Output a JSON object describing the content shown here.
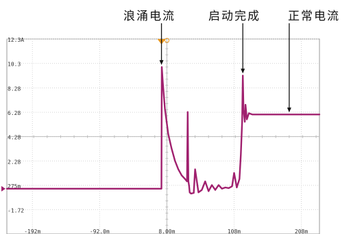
{
  "annotations": {
    "inrush_current": "浪涌电流",
    "startup_complete": "启动完成",
    "normal_current": "正常电流"
  },
  "chart_data": {
    "type": "line",
    "title": "",
    "xlabel": "",
    "ylabel": "",
    "x_unit": "ms",
    "y_unit": "A",
    "xlim": [
      -230,
      235
    ],
    "ylim": [
      -3.72,
      12.3
    ],
    "grid": true,
    "y_tick_labels": [
      {
        "value": 12.3,
        "label": "12.3A"
      },
      {
        "value": 10.3,
        "label": "10.3"
      },
      {
        "value": 8.28,
        "label": "8.28"
      },
      {
        "value": 6.28,
        "label": "6.28"
      },
      {
        "value": 4.28,
        "label": "4.28"
      },
      {
        "value": 2.28,
        "label": "2.28"
      },
      {
        "value": 0.275,
        "label": "275m"
      },
      {
        "value": -1.72,
        "label": "-1.72"
      }
    ],
    "x_tick_labels": [
      {
        "value": -192,
        "label": "-192m"
      },
      {
        "value": -92,
        "label": "-92.0m"
      },
      {
        "value": 8,
        "label": "8.00m"
      },
      {
        "value": 108,
        "label": "108m"
      },
      {
        "value": 208,
        "label": "208m"
      }
    ],
    "series": [
      {
        "color": "#a0206e",
        "x": [
          -230,
          0,
          0.5,
          2,
          5,
          10,
          15,
          20,
          25,
          30,
          35,
          38,
          39,
          40,
          41,
          42,
          44,
          48,
          50,
          55,
          60,
          65,
          70,
          75,
          80,
          85,
          90,
          95,
          100,
          105,
          108,
          112,
          116,
          118,
          120,
          121,
          122,
          124,
          125,
          127,
          130,
          135,
          140,
          150,
          235
        ],
        "y": [
          0.0,
          0.0,
          10.0,
          8.7,
          6.6,
          4.5,
          3.3,
          2.3,
          1.6,
          1.1,
          0.8,
          0.6,
          6.3,
          0.6,
          0.25,
          -0.3,
          -0.4,
          -0.35,
          1.6,
          -0.3,
          -0.1,
          0.6,
          -0.2,
          0.3,
          -0.1,
          0.3,
          0.0,
          0.1,
          0.05,
          0.2,
          1.3,
          0.1,
          0.8,
          2.8,
          5.5,
          9.3,
          6.5,
          5.5,
          6.9,
          5.7,
          6.2,
          6.1,
          6.1,
          6.1,
          6.1
        ]
      }
    ],
    "annotations": [
      {
        "text": "浪涌电流",
        "x": 0,
        "y": 10.0
      },
      {
        "text": "启动完成",
        "x": 121,
        "y": 9.3
      },
      {
        "text": "正常电流",
        "x": 190,
        "y": 6.1
      }
    ],
    "trigger_marker_color": "#e8961e"
  }
}
